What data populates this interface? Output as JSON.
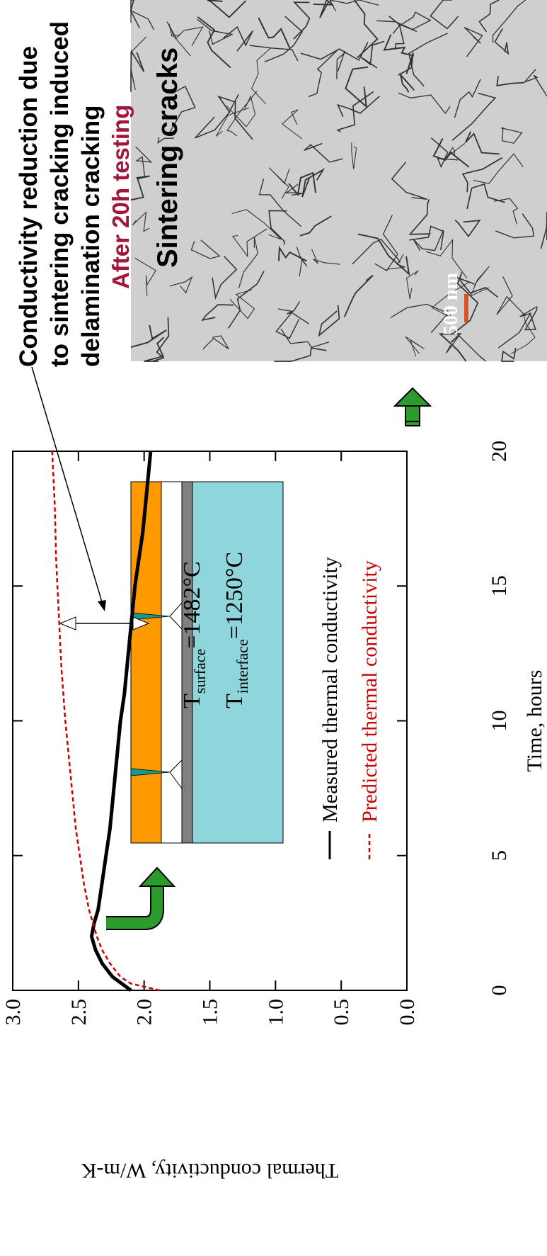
{
  "chart_data": {
    "type": "line",
    "xlabel": "Time, hours",
    "ylabel": "Thermal conductivity, W/m-K",
    "xlim": [
      0,
      20
    ],
    "xticks": [
      0,
      5,
      10,
      15,
      20
    ],
    "ylim": [
      0,
      3
    ],
    "yticks": [
      {
        "value": 0,
        "label": "0.0"
      },
      {
        "value": 0.5,
        "label": "0.5"
      },
      {
        "value": 1,
        "label": "1.0"
      },
      {
        "value": 1.5,
        "label": "1.5"
      },
      {
        "value": 2,
        "label": "2.0"
      },
      {
        "value": 2.5,
        "label": "2.5"
      },
      {
        "value": 3,
        "label": "3.0"
      }
    ],
    "series": [
      {
        "name": "Measured thermal conductivity",
        "color": "#000000",
        "dash": false,
        "x": [
          0,
          0.5,
          1,
          1.5,
          2,
          2.5,
          3,
          4,
          5,
          6,
          7,
          8,
          9,
          10,
          11,
          12,
          13,
          14,
          15,
          16,
          17,
          18,
          19,
          20
        ],
        "values": [
          2.1,
          2.24,
          2.32,
          2.37,
          2.4,
          2.38,
          2.35,
          2.32,
          2.29,
          2.26,
          2.24,
          2.22,
          2.2,
          2.18,
          2.15,
          2.13,
          2.11,
          2.09,
          2.07,
          2.04,
          2.01,
          1.99,
          1.97,
          1.95
        ]
      },
      {
        "name": "Predicted thermal conductivity",
        "color": "#cc0000",
        "dash": true,
        "x": [
          0,
          0.25,
          0.5,
          1,
          1.5,
          2,
          3,
          4,
          5,
          6,
          8,
          10,
          12,
          14,
          16,
          18,
          20
        ],
        "values": [
          1.88,
          2.1,
          2.18,
          2.26,
          2.32,
          2.36,
          2.42,
          2.46,
          2.49,
          2.52,
          2.56,
          2.6,
          2.63,
          2.65,
          2.67,
          2.68,
          2.7
        ]
      }
    ],
    "conditions": [
      {
        "symbol": "T",
        "subscript": "surface",
        "text": "=1482°C"
      },
      {
        "symbol": "T",
        "subscript": "interface",
        "text": "=1250°C"
      }
    ],
    "note": [
      "Conductivity reduction due",
      "to sintering cracking induced",
      "delamination cracking"
    ],
    "after_testing": "After 20h testing",
    "photo_label": "Sintering cracks",
    "scale_bar": "500 nm"
  }
}
